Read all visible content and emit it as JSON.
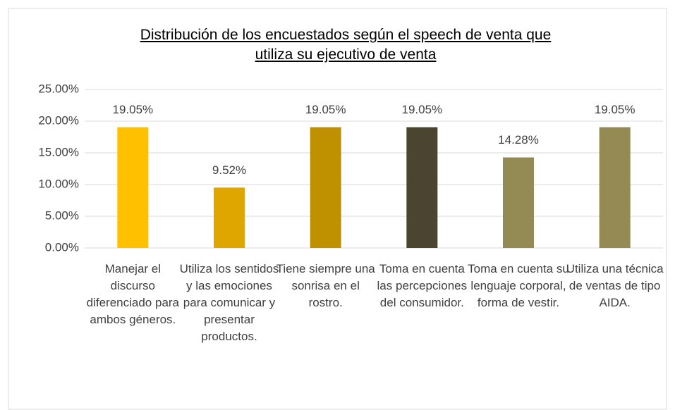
{
  "chart_data": {
    "type": "bar",
    "title": "Distribución de los encuestados según el speech de venta que utiliza su ejecutivo de venta",
    "categories": [
      "Manejar el discurso diferenciado para ambos géneros.",
      "Utiliza los sentidos y las emociones para comunicar y presentar productos.",
      "Tiene siempre una sonrisa en el rostro.",
      "Toma en cuenta las percepciones del consumidor.",
      "Toma en cuenta su lenguaje corporal, forma de vestir.",
      "Utiliza una técnica de ventas de tipo AIDA."
    ],
    "values": [
      19.05,
      9.52,
      19.05,
      19.05,
      14.28,
      19.05
    ],
    "value_labels": [
      "19.05%",
      "9.52%",
      "19.05%",
      "19.05%",
      "14.28%",
      "19.05%"
    ],
    "colors": [
      "#ffc000",
      "#e0a600",
      "#bf9000",
      "#4b452f",
      "#948a54",
      "#948a54"
    ],
    "ylim": [
      0,
      25
    ],
    "yticks": [
      {
        "value": 0,
        "label": "0.00%"
      },
      {
        "value": 5,
        "label": "5.00%"
      },
      {
        "value": 10,
        "label": "10.00%"
      },
      {
        "value": 15,
        "label": "15.00%"
      },
      {
        "value": 20,
        "label": "20.00%"
      },
      {
        "value": 25,
        "label": "25.00%"
      }
    ],
    "grid": true
  }
}
